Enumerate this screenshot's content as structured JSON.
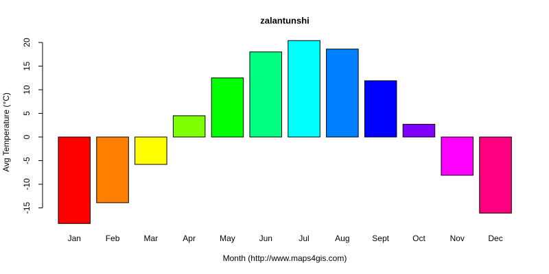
{
  "chart_data": {
    "type": "bar",
    "title": "zalantunshi",
    "x_label": "Month (http://www.maps4gis.com)",
    "y_label": "Avg Temperature (°C)",
    "categories": [
      "Jan",
      "Feb",
      "Mar",
      "Apr",
      "May",
      "Jun",
      "Jul",
      "Aug",
      "Sept",
      "Oct",
      "Nov",
      "Dec"
    ],
    "values": [
      -18.3,
      -13.9,
      -5.8,
      4.5,
      12.5,
      18.0,
      20.4,
      18.6,
      11.9,
      2.7,
      -8.1,
      -16.1
    ],
    "colors": [
      "#ff0000",
      "#ff8000",
      "#ffff00",
      "#80ff00",
      "#00ff00",
      "#00ff80",
      "#00ffff",
      "#0080ff",
      "#0000ff",
      "#8000ff",
      "#ff00ff",
      "#ff0080"
    ],
    "ylim": [
      -20,
      22
    ],
    "yticks": [
      -15,
      -10,
      -5,
      0,
      5,
      10,
      15,
      20
    ],
    "grid": false
  }
}
